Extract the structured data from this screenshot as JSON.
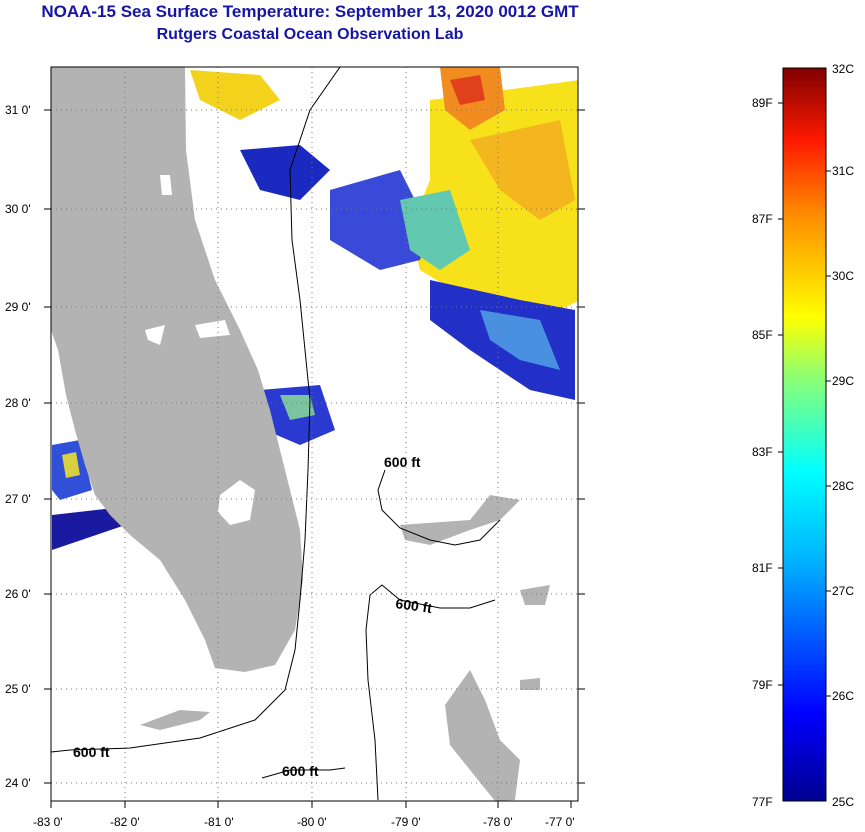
{
  "header": {
    "title": "NOAA-15 Sea Surface Temperature:  September 13, 2020 0012 GMT",
    "subtitle": "Rutgers Coastal Ocean Observation Lab"
  },
  "map": {
    "lon_labels": [
      "-83 0'",
      "-82 0'",
      "-81 0'",
      "-80 0'",
      "-79 0'",
      "-78 0'",
      "-77 0'"
    ],
    "lat_labels": [
      "31 0'",
      "30 0'",
      "29 0'",
      "28 0'",
      "27 0'",
      "26 0'",
      "25 0'",
      "24 0'"
    ],
    "contour_labels": [
      "600 ft",
      "600 ft",
      "600 ft",
      "600 ft"
    ],
    "land_color": "#b3b3b3",
    "cloud_color": "#ffffff"
  },
  "colorbar": {
    "top_label": "32C",
    "bottom_left_label": "77F",
    "bottom_right_label": "25C",
    "fahrenheit": [
      "89F",
      "87F",
      "85F",
      "83F",
      "81F",
      "79F"
    ],
    "celsius": [
      "31C",
      "30C",
      "29C",
      "28C",
      "27C",
      "26C"
    ],
    "colors": [
      "#00008f",
      "#0000ff",
      "#00a0ff",
      "#00ffff",
      "#80ff80",
      "#ffff00",
      "#ff8000",
      "#ff0000",
      "#800000"
    ]
  }
}
